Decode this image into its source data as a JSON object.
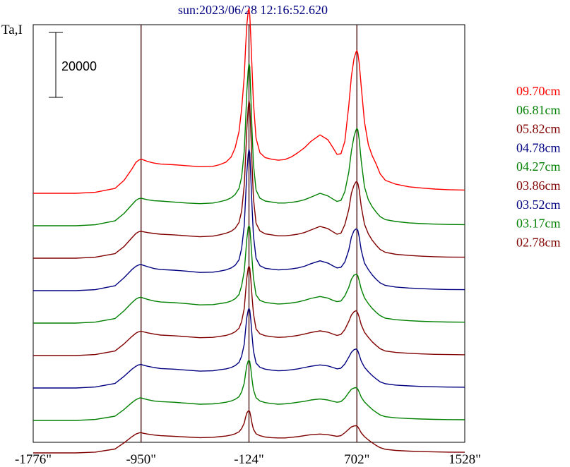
{
  "title": "sun:2023/06/28 12:16:52.620",
  "ylabel": "Ta,I",
  "chart_data": {
    "type": "line",
    "title": "sun:2023/06/28 12:16:52.620",
    "ylabel": "Ta,I",
    "xlabel": "",
    "x_ticks": [
      "-1776\"",
      "-950\"",
      "-124\"",
      "702\"",
      "1528\""
    ],
    "x_tick_values": [
      -1776,
      -950,
      -124,
      702,
      1528
    ],
    "xlim": [
      -1776,
      1528
    ],
    "vertical_lines": [
      -950,
      -124,
      702
    ],
    "scale_bar": {
      "label": "20000",
      "value": 20000
    },
    "grid": false,
    "legend_position": "right",
    "x": [
      -1776,
      -1600,
      -1450,
      -1300,
      -1150,
      -1080,
      -1020,
      -990,
      -970,
      -950,
      -940,
      -900,
      -850,
      -800,
      -700,
      -600,
      -500,
      -400,
      -350,
      -300,
      -260,
      -230,
      -200,
      -180,
      -160,
      -150,
      -140,
      -130,
      -124,
      -118,
      -110,
      -100,
      -90,
      -70,
      -40,
      0,
      50,
      100,
      150,
      200,
      250,
      300,
      350,
      420,
      480,
      520,
      550,
      580,
      610,
      640,
      660,
      680,
      695,
      702,
      710,
      720,
      735,
      760,
      790,
      820,
      850,
      880,
      920,
      1000,
      1100,
      1200,
      1300,
      1400,
      1528
    ],
    "series": [
      {
        "name": "09.70cm",
        "color": "#ff0000",
        "values": [
          0,
          0,
          0,
          300,
          1500,
          4000,
          7500,
          9500,
          10200,
          10500,
          10400,
          9800,
          9300,
          9000,
          8800,
          8500,
          8200,
          8300,
          8800,
          9600,
          11200,
          14000,
          19000,
          26000,
          36000,
          45000,
          52000,
          56000,
          57000,
          55000,
          48000,
          38000,
          28000,
          17000,
          12500,
          11000,
          10500,
          10200,
          10400,
          11200,
          12500,
          14000,
          16000,
          18000,
          16500,
          14000,
          12000,
          12200,
          16000,
          27000,
          36000,
          41500,
          43500,
          44000,
          43000,
          40000,
          33000,
          22000,
          15000,
          11500,
          9000,
          6000,
          4000,
          2800,
          2000,
          1600,
          1300,
          1100,
          1000
        ]
      },
      {
        "name": "06.81cm",
        "color": "#008000",
        "values": [
          0,
          0,
          0,
          300,
          1500,
          3800,
          6500,
          7800,
          8300,
          8500,
          8400,
          8000,
          7700,
          7600,
          7300,
          7000,
          6800,
          7000,
          7400,
          7900,
          8600,
          9600,
          11500,
          15000,
          23000,
          32000,
          41500,
          48000,
          50000,
          49000,
          40000,
          29000,
          19000,
          11000,
          8500,
          7600,
          7300,
          7000,
          7000,
          7200,
          7500,
          8000,
          8800,
          10000,
          9200,
          8200,
          7500,
          7800,
          10500,
          16500,
          23000,
          27500,
          29500,
          30000,
          29500,
          26500,
          20000,
          12000,
          8000,
          5800,
          4200,
          2800,
          1900,
          1300,
          900,
          650,
          500,
          400,
          350
        ]
      },
      {
        "name": "05.82cm",
        "color": "#800000",
        "values": [
          0,
          0,
          0,
          300,
          1400,
          3600,
          6300,
          7600,
          8100,
          8300,
          8200,
          7900,
          7600,
          7400,
          7200,
          6900,
          6600,
          6800,
          7200,
          7700,
          8300,
          9200,
          11000,
          14500,
          22500,
          31000,
          40000,
          46500,
          48500,
          47500,
          39000,
          28500,
          18500,
          10800,
          8400,
          7500,
          7200,
          6900,
          6900,
          7100,
          7400,
          7900,
          8700,
          9800,
          9100,
          8100,
          7400,
          7700,
          10300,
          15000,
          20000,
          22500,
          23500,
          23600,
          23000,
          21000,
          16000,
          10500,
          7500,
          5500,
          4000,
          2700,
          1800,
          1200,
          850,
          600,
          450,
          350,
          300
        ]
      },
      {
        "name": "04.78cm",
        "color": "#000080",
        "values": [
          0,
          0,
          0,
          300,
          1500,
          4000,
          6500,
          7500,
          7900,
          8100,
          7900,
          7400,
          6800,
          6500,
          6300,
          6000,
          5600,
          5700,
          6000,
          6400,
          7000,
          7800,
          9500,
          13000,
          20000,
          28500,
          36500,
          42000,
          43500,
          42500,
          35000,
          25500,
          17000,
          10000,
          7700,
          6900,
          6600,
          6400,
          6500,
          6700,
          7000,
          7500,
          8300,
          9200,
          8500,
          7600,
          7000,
          7200,
          8800,
          12500,
          16500,
          18500,
          19000,
          19000,
          18500,
          16500,
          12500,
          8500,
          6500,
          4800,
          3500,
          2400,
          1600,
          1100,
          800,
          600,
          450,
          350,
          300
        ]
      },
      {
        "name": "04.27cm",
        "color": "#008000",
        "values": [
          0,
          0,
          0,
          300,
          1400,
          3800,
          6300,
          7400,
          7800,
          8000,
          7800,
          7300,
          6800,
          6500,
          6300,
          6000,
          5600,
          5700,
          6000,
          6300,
          6800,
          7500,
          8800,
          11500,
          16000,
          21000,
          26000,
          29500,
          30000,
          29500,
          25500,
          19500,
          14000,
          8700,
          7000,
          6400,
          6100,
          5900,
          6000,
          6200,
          6500,
          7000,
          7600,
          8200,
          7700,
          7000,
          6600,
          6800,
          8400,
          11000,
          13500,
          14800,
          15000,
          15000,
          14500,
          13000,
          10500,
          7800,
          6000,
          4500,
          3300,
          2300,
          1500,
          1050,
          750,
          550,
          420,
          330,
          280
        ]
      },
      {
        "name": "03.86cm",
        "color": "#800000",
        "values": [
          0,
          0,
          0,
          300,
          1400,
          3600,
          5900,
          6900,
          7300,
          7500,
          7400,
          7000,
          6600,
          6300,
          6100,
          5800,
          5500,
          5600,
          5900,
          6200,
          6700,
          7300,
          8400,
          10500,
          14500,
          19500,
          24000,
          27000,
          27500,
          27000,
          23500,
          18000,
          13000,
          8200,
          6700,
          6100,
          5800,
          5600,
          5700,
          5900,
          6200,
          6600,
          7100,
          7600,
          7200,
          6600,
          6200,
          6500,
          8000,
          10500,
          12500,
          13500,
          13800,
          13600,
          13000,
          11800,
          9500,
          7200,
          5600,
          4200,
          3100,
          2100,
          1400,
          950,
          700,
          500,
          380,
          300,
          250
        ]
      },
      {
        "name": "03.52cm",
        "color": "#000080",
        "values": [
          0,
          0,
          0,
          300,
          1400,
          3600,
          5800,
          6700,
          7100,
          7300,
          7100,
          6700,
          6300,
          6000,
          5800,
          5500,
          5200,
          5300,
          5600,
          5900,
          6300,
          6900,
          7900,
          9800,
          13500,
          18000,
          21800,
          24000,
          24500,
          24000,
          21000,
          16000,
          11500,
          7700,
          6400,
          5800,
          5500,
          5300,
          5400,
          5600,
          5900,
          6300,
          6700,
          7100,
          6800,
          6300,
          5900,
          6100,
          7400,
          9500,
          11000,
          11800,
          12000,
          11900,
          11400,
          10200,
          8300,
          6400,
          5000,
          3800,
          2800,
          1900,
          1300,
          900,
          650,
          480,
          360,
          290,
          240
        ]
      },
      {
        "name": "03.17cm",
        "color": "#008000",
        "values": [
          0,
          0,
          0,
          300,
          1300,
          3400,
          5500,
          6400,
          6800,
          7000,
          6800,
          6400,
          6000,
          5800,
          5600,
          5300,
          5000,
          5100,
          5300,
          5600,
          6000,
          6500,
          7300,
          8800,
          11500,
          14500,
          17000,
          18300,
          18500,
          18200,
          16000,
          12500,
          9500,
          7000,
          6000,
          5500,
          5200,
          5000,
          5100,
          5300,
          5600,
          5900,
          6300,
          6600,
          6300,
          5900,
          5600,
          5800,
          6900,
          8600,
          9600,
          10000,
          10100,
          10000,
          9600,
          8700,
          7200,
          5700,
          4500,
          3400,
          2500,
          1700,
          1150,
          800,
          580,
          430,
          330,
          260,
          220
        ]
      },
      {
        "name": "02.78cm",
        "color": "#800000",
        "values": [
          0,
          0,
          0,
          250,
          1200,
          3100,
          5000,
          5800,
          6100,
          6300,
          6100,
          5800,
          5500,
          5300,
          5100,
          4900,
          4700,
          4800,
          5000,
          5200,
          5500,
          5900,
          6500,
          7500,
          9200,
          11000,
          12300,
          12900,
          13000,
          12700,
          11200,
          9000,
          7300,
          5900,
          5300,
          4900,
          4700,
          4600,
          4600,
          4800,
          5000,
          5300,
          5600,
          5800,
          5600,
          5300,
          5100,
          5300,
          6200,
          7300,
          8000,
          8300,
          8400,
          8300,
          8000,
          7300,
          6200,
          5000,
          4000,
          3100,
          2300,
          1600,
          1100,
          750,
          550,
          400,
          310,
          250,
          200
        ]
      }
    ]
  }
}
